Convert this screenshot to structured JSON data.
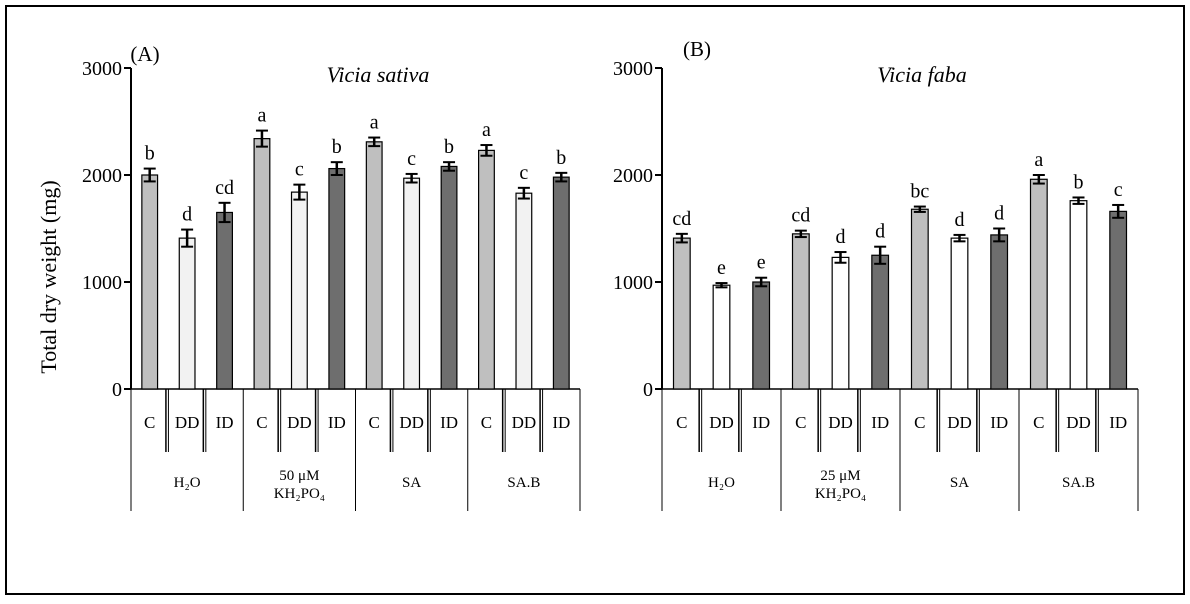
{
  "figure": {
    "ylabel": "Total dry weight  (mg)"
  },
  "chart_data": [
    {
      "type": "bar",
      "panel_label": "(A)",
      "title": "Vicia sativa",
      "ylabel": "Total dry weight  (mg)",
      "ylim": [
        0,
        3000
      ],
      "yticks": [
        "0",
        "1000",
        "2000",
        "3000"
      ],
      "groups": [
        {
          "label": [
            "H₂O"
          ],
          "categories": [
            "C",
            "DD",
            "ID"
          ],
          "values": [
            2000,
            1410,
            1650
          ],
          "errors": [
            60,
            80,
            90
          ],
          "letters": [
            "b",
            "d",
            "cd"
          ]
        },
        {
          "label": [
            "50 μM",
            "KH₂PO₄"
          ],
          "categories": [
            "C",
            "DD",
            "ID"
          ],
          "values": [
            2340,
            1840,
            2060
          ],
          "errors": [
            75,
            70,
            60
          ],
          "letters": [
            "a",
            "c",
            "b"
          ]
        },
        {
          "label": [
            "SA"
          ],
          "categories": [
            "C",
            "DD",
            "ID"
          ],
          "values": [
            2310,
            1970,
            2080
          ],
          "errors": [
            40,
            40,
            40
          ],
          "letters": [
            "a",
            "c",
            "b"
          ]
        },
        {
          "label": [
            "SA.B"
          ],
          "categories": [
            "C",
            "DD",
            "ID"
          ],
          "values": [
            2230,
            1830,
            1980
          ],
          "errors": [
            50,
            50,
            40
          ],
          "letters": [
            "a",
            "c",
            "b"
          ]
        }
      ],
      "series_colors": [
        "#bfbfbf",
        "#f2f2f2",
        "#6e6e6e"
      ],
      "grid": false
    },
    {
      "type": "bar",
      "panel_label": "(B)",
      "title": "Vicia faba",
      "ylim": [
        0,
        3000
      ],
      "yticks": [
        "0",
        "1000",
        "2000",
        "3000"
      ],
      "groups": [
        {
          "label": [
            "H₂O"
          ],
          "categories": [
            "C",
            "DD",
            "ID"
          ],
          "values": [
            1410,
            970,
            1000
          ],
          "errors": [
            40,
            20,
            40
          ],
          "letters": [
            "cd",
            "e",
            "e"
          ]
        },
        {
          "label": [
            "25 μM",
            "KH₂PO₄"
          ],
          "categories": [
            "C",
            "DD",
            "ID"
          ],
          "values": [
            1450,
            1230,
            1250
          ],
          "errors": [
            30,
            50,
            80
          ],
          "letters": [
            "cd",
            "d",
            "d"
          ]
        },
        {
          "label": [
            "SA"
          ],
          "categories": [
            "C",
            "DD",
            "ID"
          ],
          "values": [
            1680,
            1410,
            1440
          ],
          "errors": [
            25,
            30,
            60
          ],
          "letters": [
            "bc",
            "d",
            "d"
          ]
        },
        {
          "label": [
            "SA.B"
          ],
          "categories": [
            "C",
            "DD",
            "ID"
          ],
          "values": [
            1960,
            1760,
            1660
          ],
          "errors": [
            40,
            30,
            60
          ],
          "letters": [
            "a",
            "b",
            "c"
          ]
        }
      ],
      "series_colors": [
        "#bfbfbf",
        "#ffffff",
        "#6e6e6e"
      ],
      "grid": false
    }
  ]
}
